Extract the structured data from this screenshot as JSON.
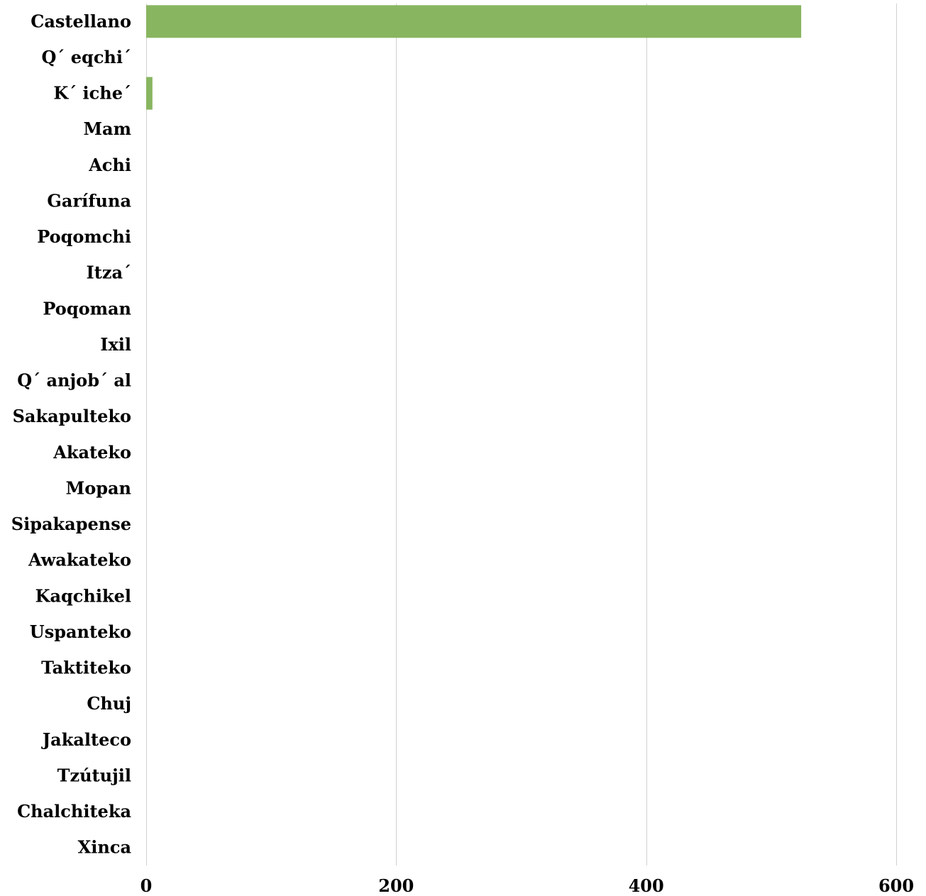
{
  "chart_data": {
    "type": "bar",
    "orientation": "horizontal",
    "categories": [
      "Castellano",
      "Q´ eqchi´",
      "K´ iche´",
      "Mam",
      "Achi",
      "Garífuna",
      "Poqomchi",
      "Itza´",
      "Poqoman",
      "Ixil",
      "Q´ anjob´ al",
      "Sakapulteko",
      "Akateko",
      "Mopan",
      "Sipakapense",
      "Awakateko",
      "Kaqchikel",
      "Uspanteko",
      "Taktiteko",
      "Chuj",
      "Jakalteco",
      "Tzútujil",
      "Chalchiteka",
      "Xinca"
    ],
    "values": [
      524,
      0,
      5,
      0,
      0,
      0,
      0,
      0,
      0,
      0,
      0,
      0,
      0,
      0,
      0,
      0,
      0,
      0,
      0,
      0,
      0,
      0,
      0,
      0
    ],
    "xlim": [
      0,
      600
    ],
    "xticks": [
      "0",
      "200",
      "400",
      "600"
    ],
    "xtick_values": [
      0,
      200,
      400,
      600
    ],
    "bar_color": "#88b560",
    "grid": "vertical",
    "title": "",
    "xlabel": "",
    "ylabel": ""
  }
}
